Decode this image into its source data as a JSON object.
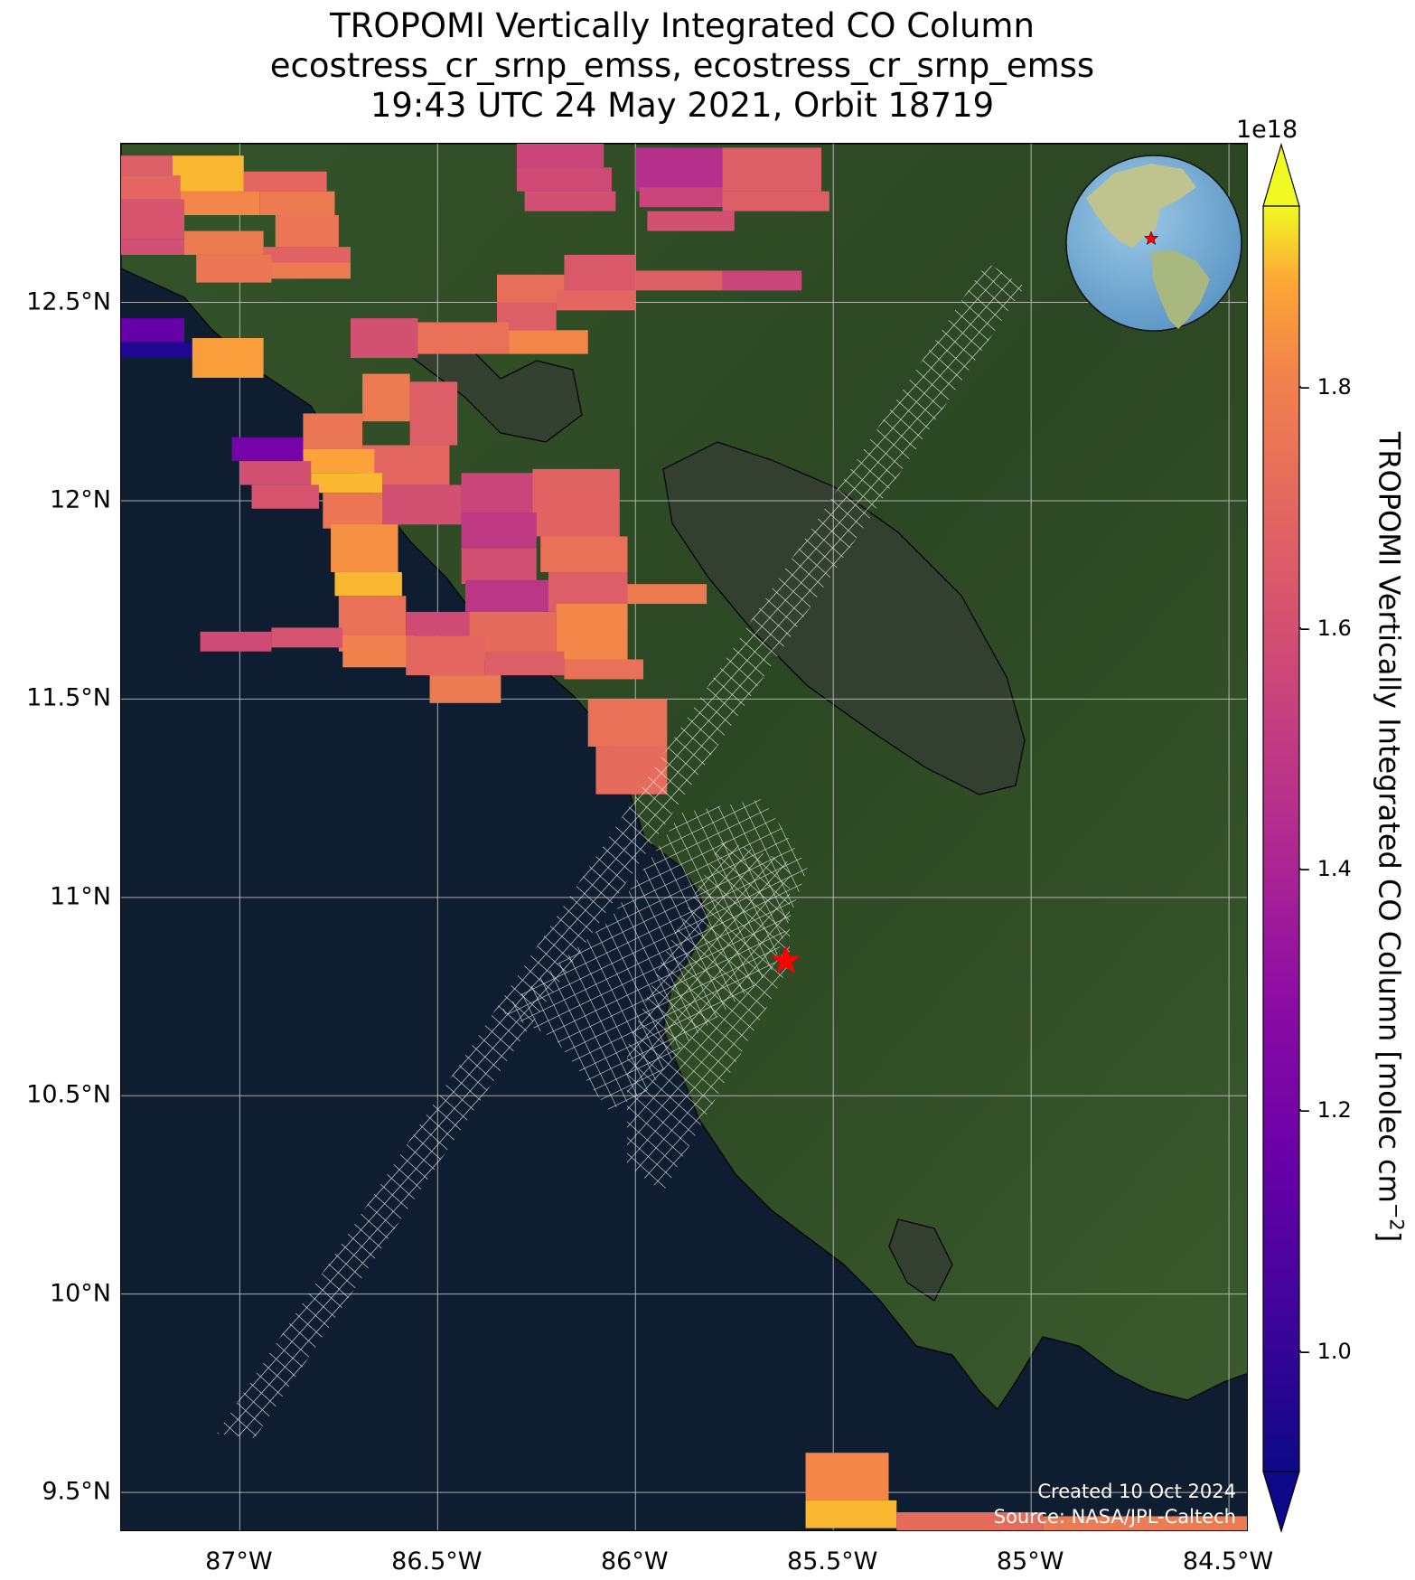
{
  "title": {
    "line1": "TROPOMI Vertically Integrated CO Column",
    "line2": "ecostress_cr_srnp_emss, ecostress_cr_srnp_emss",
    "line3": "19:43 UTC 24 May 2021, Orbit 18719"
  },
  "map": {
    "lon_range": [
      -87.3,
      -84.45
    ],
    "lat_range": [
      9.4,
      12.9
    ],
    "x_ticks": [
      "87°W",
      "86.5°W",
      "86°W",
      "85.5°W",
      "85°W",
      "84.5°W"
    ],
    "x_tick_values": [
      -87.0,
      -86.5,
      -86.0,
      -85.5,
      -85.0,
      -84.5
    ],
    "y_ticks": [
      "9.5°N",
      "10°N",
      "10.5°N",
      "11°N",
      "11.5°N",
      "12°N",
      "12.5°N"
    ],
    "y_tick_values": [
      9.5,
      10.0,
      10.5,
      11.0,
      11.5,
      12.0,
      12.5
    ],
    "grid": true,
    "ocean_color": "#0e1e30",
    "land_color": "#2f4a25",
    "lake_color": "#33402f",
    "target_marker": {
      "lon": -85.62,
      "lat": 10.84,
      "color": "#ff0000",
      "icon": "star-icon"
    },
    "credit_line1": "Created 10 Oct 2024",
    "credit_line2": "Source: NASA/JPL-Caltech"
  },
  "colorbar": {
    "label": "TROPOMI Vertically Integrated CO Column [molec cm",
    "label_sup": "−2",
    "label_end": "]",
    "scale_note": "1e18",
    "colormap": "plasma",
    "vmin": 0.9,
    "vmax": 1.95,
    "extend": "both",
    "ticks": [
      "1.0",
      "1.2",
      "1.4",
      "1.6",
      "1.8"
    ],
    "tick_values": [
      1.0,
      1.2,
      1.4,
      1.6,
      1.8
    ]
  },
  "inset": {
    "type": "globe",
    "marker_color": "#ff0000",
    "icon": "globe-icon"
  },
  "co_pixels": [
    {
      "lon": [
        -87.3,
        -87.17
      ],
      "lat": [
        12.82,
        12.87
      ],
      "v": 1.66
    },
    {
      "lon": [
        -87.17,
        -86.99
      ],
      "lat": [
        12.78,
        12.87
      ],
      "v": 1.9
    },
    {
      "lon": [
        -86.99,
        -86.78
      ],
      "lat": [
        12.78,
        12.83
      ],
      "v": 1.7
    },
    {
      "lon": [
        -87.3,
        -87.15
      ],
      "lat": [
        12.76,
        12.82
      ],
      "v": 1.7
    },
    {
      "lon": [
        -87.15,
        -86.95
      ],
      "lat": [
        12.72,
        12.78
      ],
      "v": 1.82
    },
    {
      "lon": [
        -86.95,
        -86.76
      ],
      "lat": [
        12.72,
        12.78
      ],
      "v": 1.78
    },
    {
      "lon": [
        -87.3,
        -87.14
      ],
      "lat": [
        12.66,
        12.76
      ],
      "v": 1.62
    },
    {
      "lon": [
        -86.91,
        -86.75
      ],
      "lat": [
        12.64,
        12.72
      ],
      "v": 1.76
    },
    {
      "lon": [
        -87.3,
        -87.12
      ],
      "lat": [
        12.62,
        12.66
      ],
      "v": 1.6
    },
    {
      "lon": [
        -87.14,
        -86.94
      ],
      "lat": [
        12.62,
        12.68
      ],
      "v": 1.78
    },
    {
      "lon": [
        -86.94,
        -86.72
      ],
      "lat": [
        12.56,
        12.64
      ],
      "v": 1.68
    },
    {
      "lon": [
        -87.11,
        -86.92
      ],
      "lat": [
        12.55,
        12.62
      ],
      "v": 1.76
    },
    {
      "lon": [
        -86.92,
        -86.72
      ],
      "lat": [
        12.56,
        12.6
      ],
      "v": 1.78
    },
    {
      "lon": [
        -86.3,
        -86.08
      ],
      "lat": [
        12.84,
        12.9
      ],
      "v": 1.55
    },
    {
      "lon": [
        -86.3,
        -86.06
      ],
      "lat": [
        12.78,
        12.84
      ],
      "v": 1.58
    },
    {
      "lon": [
        -86.28,
        -86.05
      ],
      "lat": [
        12.73,
        12.78
      ],
      "v": 1.6
    },
    {
      "lon": [
        -86.0,
        -85.78
      ],
      "lat": [
        12.78,
        12.89
      ],
      "v": 1.45
    },
    {
      "lon": [
        -85.99,
        -85.77
      ],
      "lat": [
        12.74,
        12.79
      ],
      "v": 1.55
    },
    {
      "lon": [
        -85.78,
        -85.53
      ],
      "lat": [
        12.78,
        12.89
      ],
      "v": 1.66
    },
    {
      "lon": [
        -85.78,
        -85.51
      ],
      "lat": [
        12.73,
        12.78
      ],
      "v": 1.66
    },
    {
      "lon": [
        -85.97,
        -85.75
      ],
      "lat": [
        12.68,
        12.73
      ],
      "v": 1.6
    },
    {
      "lon": [
        -86.35,
        -86.18
      ],
      "lat": [
        12.5,
        12.57
      ],
      "v": 1.73
    },
    {
      "lon": [
        -86.18,
        -86.0
      ],
      "lat": [
        12.52,
        12.62
      ],
      "v": 1.64
    },
    {
      "lon": [
        -86.0,
        -85.78
      ],
      "lat": [
        12.53,
        12.58
      ],
      "v": 1.66
    },
    {
      "lon": [
        -85.78,
        -85.58
      ],
      "lat": [
        12.53,
        12.58
      ],
      "v": 1.55
    },
    {
      "lon": [
        -86.35,
        -86.2
      ],
      "lat": [
        12.43,
        12.5
      ],
      "v": 1.66
    },
    {
      "lon": [
        -86.2,
        -86.0
      ],
      "lat": [
        12.48,
        12.53
      ],
      "v": 1.7
    },
    {
      "lon": [
        -86.72,
        -86.55
      ],
      "lat": [
        12.36,
        12.46
      ],
      "v": 1.6
    },
    {
      "lon": [
        -86.55,
        -86.32
      ],
      "lat": [
        12.37,
        12.45
      ],
      "v": 1.74
    },
    {
      "lon": [
        -86.32,
        -86.12
      ],
      "lat": [
        12.37,
        12.43
      ],
      "v": 1.82
    },
    {
      "lon": [
        -87.3,
        -87.14
      ],
      "lat": [
        12.4,
        12.46
      ],
      "v": 1.15
    },
    {
      "lon": [
        -87.3,
        -87.12
      ],
      "lat": [
        12.36,
        12.4
      ],
      "v": 0.95
    },
    {
      "lon": [
        -87.12,
        -86.94
      ],
      "lat": [
        12.31,
        12.41
      ],
      "v": 1.87
    },
    {
      "lon": [
        -86.69,
        -86.57
      ],
      "lat": [
        12.2,
        12.32
      ],
      "v": 1.78
    },
    {
      "lon": [
        -86.57,
        -86.45
      ],
      "lat": [
        12.14,
        12.3
      ],
      "v": 1.66
    },
    {
      "lon": [
        -86.84,
        -86.69
      ],
      "lat": [
        12.13,
        12.22
      ],
      "v": 1.76
    },
    {
      "lon": [
        -86.69,
        -86.47
      ],
      "lat": [
        12.04,
        12.14
      ],
      "v": 1.7
    },
    {
      "lon": [
        -87.02,
        -86.84
      ],
      "lat": [
        12.1,
        12.16
      ],
      "v": 1.2
    },
    {
      "lon": [
        -86.84,
        -86.66
      ],
      "lat": [
        12.07,
        12.13
      ],
      "v": 1.88
    },
    {
      "lon": [
        -87.0,
        -86.82
      ],
      "lat": [
        12.04,
        12.1
      ],
      "v": 1.6
    },
    {
      "lon": [
        -86.82,
        -86.64
      ],
      "lat": [
        12.02,
        12.07
      ],
      "v": 1.9
    },
    {
      "lon": [
        -86.97,
        -86.8
      ],
      "lat": [
        11.98,
        12.04
      ],
      "v": 1.62
    },
    {
      "lon": [
        -86.79,
        -86.6
      ],
      "lat": [
        11.93,
        12.02
      ],
      "v": 1.76
    },
    {
      "lon": [
        -86.64,
        -86.44
      ],
      "lat": [
        11.94,
        12.04
      ],
      "v": 1.6
    },
    {
      "lon": [
        -86.44,
        -86.26
      ],
      "lat": [
        11.97,
        12.07
      ],
      "v": 1.55
    },
    {
      "lon": [
        -86.26,
        -86.04
      ],
      "lat": [
        11.91,
        12.08
      ],
      "v": 1.68
    },
    {
      "lon": [
        -86.44,
        -86.25
      ],
      "lat": [
        11.88,
        11.97
      ],
      "v": 1.5
    },
    {
      "lon": [
        -86.24,
        -86.02
      ],
      "lat": [
        11.82,
        11.91
      ],
      "v": 1.74
    },
    {
      "lon": [
        -86.77,
        -86.6
      ],
      "lat": [
        11.82,
        11.94
      ],
      "v": 1.84
    },
    {
      "lon": [
        -86.44,
        -86.25
      ],
      "lat": [
        11.79,
        11.88
      ],
      "v": 1.6
    },
    {
      "lon": [
        -86.76,
        -86.59
      ],
      "lat": [
        11.76,
        11.82
      ],
      "v": 1.9
    },
    {
      "lon": [
        -86.43,
        -86.22
      ],
      "lat": [
        11.72,
        11.8
      ],
      "v": 1.48
    },
    {
      "lon": [
        -86.22,
        -86.02
      ],
      "lat": [
        11.72,
        11.82
      ],
      "v": 1.66
    },
    {
      "lon": [
        -86.02,
        -85.82
      ],
      "lat": [
        11.74,
        11.79
      ],
      "v": 1.78
    },
    {
      "lon": [
        -86.75,
        -86.58
      ],
      "lat": [
        11.62,
        11.76
      ],
      "v": 1.74
    },
    {
      "lon": [
        -86.58,
        -86.42
      ],
      "lat": [
        11.66,
        11.72
      ],
      "v": 1.58
    },
    {
      "lon": [
        -86.42,
        -86.2
      ],
      "lat": [
        11.6,
        11.72
      ],
      "v": 1.72
    },
    {
      "lon": [
        -86.2,
        -86.02
      ],
      "lat": [
        11.6,
        11.74
      ],
      "v": 1.82
    },
    {
      "lon": [
        -87.1,
        -86.92
      ],
      "lat": [
        11.62,
        11.67
      ],
      "v": 1.58
    },
    {
      "lon": [
        -86.92,
        -86.74
      ],
      "lat": [
        11.63,
        11.68
      ],
      "v": 1.62
    },
    {
      "lon": [
        -86.74,
        -86.56
      ],
      "lat": [
        11.58,
        11.66
      ],
      "v": 1.8
    },
    {
      "lon": [
        -86.58,
        -86.38
      ],
      "lat": [
        11.56,
        11.66
      ],
      "v": 1.7
    },
    {
      "lon": [
        -86.38,
        -86.18
      ],
      "lat": [
        11.56,
        11.62
      ],
      "v": 1.66
    },
    {
      "lon": [
        -86.18,
        -85.98
      ],
      "lat": [
        11.55,
        11.6
      ],
      "v": 1.74
    },
    {
      "lon": [
        -86.52,
        -86.34
      ],
      "lat": [
        11.49,
        11.56
      ],
      "v": 1.78
    },
    {
      "lon": [
        -86.12,
        -85.92
      ],
      "lat": [
        11.38,
        11.5
      ],
      "v": 1.74
    },
    {
      "lon": [
        -86.1,
        -85.92
      ],
      "lat": [
        11.26,
        11.38
      ],
      "v": 1.72
    },
    {
      "lon": [
        -85.57,
        -85.36
      ],
      "lat": [
        9.48,
        9.6
      ],
      "v": 1.82
    },
    {
      "lon": [
        -85.57,
        -85.34
      ],
      "lat": [
        9.41,
        9.48
      ],
      "v": 1.9
    },
    {
      "lon": [
        -85.34,
        -84.97
      ],
      "lat": [
        9.4,
        9.45
      ],
      "v": 1.72
    },
    {
      "lon": [
        -84.97,
        -84.45
      ],
      "lat": [
        9.4,
        9.44
      ],
      "v": 1.78
    }
  ]
}
